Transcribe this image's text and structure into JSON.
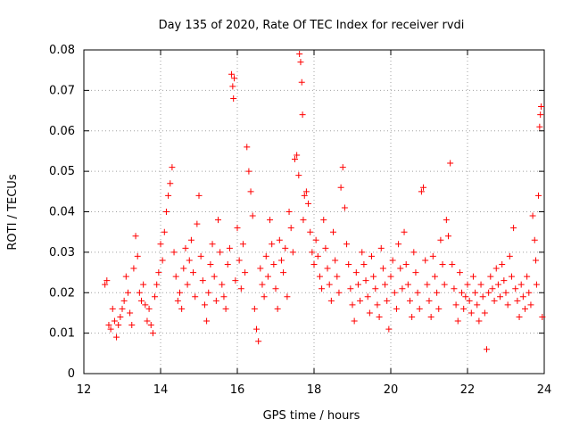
{
  "chart_data": {
    "type": "scatter",
    "title": "Day 135 of 2020, Rate Of TEC Index for receiver rvdi",
    "xlabel": "GPS time / hours",
    "ylabel": "ROTI / TECUs",
    "xlim": [
      12,
      24
    ],
    "ylim": [
      0,
      0.08
    ],
    "xticks": [
      12,
      14,
      16,
      18,
      20,
      22,
      24
    ],
    "xtick_labels": [
      "12",
      "14",
      "16",
      "18",
      "20",
      "22",
      "24"
    ],
    "yticks": [
      0,
      0.01,
      0.02,
      0.03,
      0.04,
      0.05,
      0.06,
      0.07,
      0.08
    ],
    "ytick_labels": [
      "0",
      "0.01",
      "0.02",
      "0.03",
      "0.04",
      "0.05",
      "0.06",
      "0.07",
      "0.08"
    ],
    "grid": true,
    "marker": "+",
    "color": "#ff0000",
    "series": [
      {
        "name": "ROTI",
        "points": [
          [
            12.55,
            0.022
          ],
          [
            12.6,
            0.023
          ],
          [
            12.65,
            0.012
          ],
          [
            12.7,
            0.011
          ],
          [
            12.75,
            0.016
          ],
          [
            12.8,
            0.013
          ],
          [
            12.85,
            0.009
          ],
          [
            12.9,
            0.012
          ],
          [
            12.95,
            0.014
          ],
          [
            13.0,
            0.016
          ],
          [
            13.05,
            0.018
          ],
          [
            13.1,
            0.024
          ],
          [
            13.15,
            0.02
          ],
          [
            13.2,
            0.015
          ],
          [
            13.25,
            0.012
          ],
          [
            13.3,
            0.026
          ],
          [
            13.35,
            0.034
          ],
          [
            13.4,
            0.029
          ],
          [
            13.45,
            0.02
          ],
          [
            13.5,
            0.018
          ],
          [
            13.55,
            0.022
          ],
          [
            13.6,
            0.017
          ],
          [
            13.65,
            0.013
          ],
          [
            13.7,
            0.016
          ],
          [
            13.75,
            0.012
          ],
          [
            13.8,
            0.01
          ],
          [
            13.85,
            0.019
          ],
          [
            13.9,
            0.022
          ],
          [
            13.95,
            0.025
          ],
          [
            14.0,
            0.032
          ],
          [
            14.05,
            0.028
          ],
          [
            14.1,
            0.035
          ],
          [
            14.15,
            0.04
          ],
          [
            14.2,
            0.044
          ],
          [
            14.25,
            0.047
          ],
          [
            14.3,
            0.051
          ],
          [
            14.35,
            0.03
          ],
          [
            14.4,
            0.024
          ],
          [
            14.45,
            0.018
          ],
          [
            14.5,
            0.02
          ],
          [
            14.55,
            0.016
          ],
          [
            14.6,
            0.026
          ],
          [
            14.65,
            0.031
          ],
          [
            14.7,
            0.022
          ],
          [
            14.75,
            0.028
          ],
          [
            14.8,
            0.033
          ],
          [
            14.85,
            0.025
          ],
          [
            14.9,
            0.019
          ],
          [
            14.95,
            0.037
          ],
          [
            15.0,
            0.044
          ],
          [
            15.05,
            0.029
          ],
          [
            15.1,
            0.023
          ],
          [
            15.15,
            0.017
          ],
          [
            15.2,
            0.013
          ],
          [
            15.25,
            0.02
          ],
          [
            15.3,
            0.027
          ],
          [
            15.35,
            0.032
          ],
          [
            15.4,
            0.024
          ],
          [
            15.45,
            0.018
          ],
          [
            15.5,
            0.038
          ],
          [
            15.55,
            0.03
          ],
          [
            15.6,
            0.022
          ],
          [
            15.65,
            0.019
          ],
          [
            15.7,
            0.016
          ],
          [
            15.75,
            0.027
          ],
          [
            15.8,
            0.031
          ],
          [
            15.85,
            0.074
          ],
          [
            15.88,
            0.071
          ],
          [
            15.9,
            0.068
          ],
          [
            15.92,
            0.073
          ],
          [
            15.95,
            0.023
          ],
          [
            16.0,
            0.036
          ],
          [
            16.05,
            0.028
          ],
          [
            16.1,
            0.021
          ],
          [
            16.15,
            0.032
          ],
          [
            16.2,
            0.025
          ],
          [
            16.25,
            0.056
          ],
          [
            16.3,
            0.05
          ],
          [
            16.35,
            0.045
          ],
          [
            16.4,
            0.039
          ],
          [
            16.45,
            0.016
          ],
          [
            16.5,
            0.011
          ],
          [
            16.55,
            0.008
          ],
          [
            16.6,
            0.026
          ],
          [
            16.65,
            0.022
          ],
          [
            16.7,
            0.019
          ],
          [
            16.75,
            0.029
          ],
          [
            16.8,
            0.024
          ],
          [
            16.85,
            0.038
          ],
          [
            16.9,
            0.032
          ],
          [
            16.95,
            0.027
          ],
          [
            17.0,
            0.021
          ],
          [
            17.05,
            0.016
          ],
          [
            17.1,
            0.033
          ],
          [
            17.15,
            0.028
          ],
          [
            17.2,
            0.025
          ],
          [
            17.25,
            0.031
          ],
          [
            17.3,
            0.019
          ],
          [
            17.35,
            0.04
          ],
          [
            17.4,
            0.036
          ],
          [
            17.45,
            0.03
          ],
          [
            17.5,
            0.053
          ],
          [
            17.55,
            0.054
          ],
          [
            17.6,
            0.049
          ],
          [
            17.62,
            0.079
          ],
          [
            17.65,
            0.077
          ],
          [
            17.68,
            0.072
          ],
          [
            17.7,
            0.064
          ],
          [
            17.72,
            0.038
          ],
          [
            17.75,
            0.044
          ],
          [
            17.8,
            0.045
          ],
          [
            17.85,
            0.042
          ],
          [
            17.9,
            0.035
          ],
          [
            17.95,
            0.03
          ],
          [
            18.0,
            0.027
          ],
          [
            18.05,
            0.033
          ],
          [
            18.1,
            0.029
          ],
          [
            18.15,
            0.024
          ],
          [
            18.2,
            0.021
          ],
          [
            18.25,
            0.038
          ],
          [
            18.3,
            0.031
          ],
          [
            18.35,
            0.026
          ],
          [
            18.4,
            0.022
          ],
          [
            18.45,
            0.018
          ],
          [
            18.5,
            0.035
          ],
          [
            18.55,
            0.028
          ],
          [
            18.6,
            0.024
          ],
          [
            18.65,
            0.02
          ],
          [
            18.7,
            0.046
          ],
          [
            18.75,
            0.051
          ],
          [
            18.8,
            0.041
          ],
          [
            18.85,
            0.032
          ],
          [
            18.9,
            0.027
          ],
          [
            18.95,
            0.021
          ],
          [
            19.0,
            0.017
          ],
          [
            19.05,
            0.013
          ],
          [
            19.1,
            0.025
          ],
          [
            19.15,
            0.022
          ],
          [
            19.2,
            0.018
          ],
          [
            19.25,
            0.03
          ],
          [
            19.3,
            0.027
          ],
          [
            19.35,
            0.023
          ],
          [
            19.4,
            0.019
          ],
          [
            19.45,
            0.015
          ],
          [
            19.5,
            0.029
          ],
          [
            19.55,
            0.024
          ],
          [
            19.6,
            0.021
          ],
          [
            19.65,
            0.017
          ],
          [
            19.7,
            0.014
          ],
          [
            19.75,
            0.031
          ],
          [
            19.8,
            0.026
          ],
          [
            19.85,
            0.022
          ],
          [
            19.9,
            0.018
          ],
          [
            19.95,
            0.011
          ],
          [
            20.0,
            0.024
          ],
          [
            20.05,
            0.028
          ],
          [
            20.1,
            0.02
          ],
          [
            20.15,
            0.016
          ],
          [
            20.2,
            0.032
          ],
          [
            20.25,
            0.026
          ],
          [
            20.3,
            0.021
          ],
          [
            20.35,
            0.035
          ],
          [
            20.4,
            0.027
          ],
          [
            20.45,
            0.022
          ],
          [
            20.5,
            0.018
          ],
          [
            20.55,
            0.014
          ],
          [
            20.6,
            0.03
          ],
          [
            20.65,
            0.025
          ],
          [
            20.7,
            0.02
          ],
          [
            20.75,
            0.016
          ],
          [
            20.8,
            0.045
          ],
          [
            20.85,
            0.046
          ],
          [
            20.9,
            0.028
          ],
          [
            20.95,
            0.022
          ],
          [
            21.0,
            0.018
          ],
          [
            21.05,
            0.014
          ],
          [
            21.1,
            0.029
          ],
          [
            21.15,
            0.024
          ],
          [
            21.2,
            0.02
          ],
          [
            21.25,
            0.016
          ],
          [
            21.3,
            0.033
          ],
          [
            21.35,
            0.027
          ],
          [
            21.4,
            0.022
          ],
          [
            21.45,
            0.038
          ],
          [
            21.5,
            0.034
          ],
          [
            21.55,
            0.052
          ],
          [
            21.6,
            0.027
          ],
          [
            21.65,
            0.021
          ],
          [
            21.7,
            0.017
          ],
          [
            21.75,
            0.013
          ],
          [
            21.8,
            0.025
          ],
          [
            21.85,
            0.02
          ],
          [
            21.9,
            0.016
          ],
          [
            21.95,
            0.019
          ],
          [
            22.0,
            0.022
          ],
          [
            22.05,
            0.018
          ],
          [
            22.1,
            0.015
          ],
          [
            22.15,
            0.024
          ],
          [
            22.2,
            0.02
          ],
          [
            22.25,
            0.017
          ],
          [
            22.3,
            0.013
          ],
          [
            22.35,
            0.022
          ],
          [
            22.4,
            0.019
          ],
          [
            22.45,
            0.015
          ],
          [
            22.5,
            0.006
          ],
          [
            22.55,
            0.02
          ],
          [
            22.6,
            0.024
          ],
          [
            22.65,
            0.021
          ],
          [
            22.7,
            0.018
          ],
          [
            22.75,
            0.026
          ],
          [
            22.8,
            0.022
          ],
          [
            22.85,
            0.019
          ],
          [
            22.9,
            0.027
          ],
          [
            22.95,
            0.023
          ],
          [
            23.0,
            0.02
          ],
          [
            23.05,
            0.017
          ],
          [
            23.1,
            0.029
          ],
          [
            23.15,
            0.024
          ],
          [
            23.2,
            0.036
          ],
          [
            23.25,
            0.021
          ],
          [
            23.3,
            0.018
          ],
          [
            23.35,
            0.014
          ],
          [
            23.4,
            0.022
          ],
          [
            23.45,
            0.019
          ],
          [
            23.5,
            0.016
          ],
          [
            23.55,
            0.024
          ],
          [
            23.6,
            0.02
          ],
          [
            23.65,
            0.017
          ],
          [
            23.7,
            0.039
          ],
          [
            23.75,
            0.033
          ],
          [
            23.78,
            0.028
          ],
          [
            23.8,
            0.022
          ],
          [
            23.85,
            0.044
          ],
          [
            23.88,
            0.061
          ],
          [
            23.9,
            0.064
          ],
          [
            23.92,
            0.066
          ],
          [
            23.95,
            0.014
          ]
        ]
      }
    ]
  }
}
